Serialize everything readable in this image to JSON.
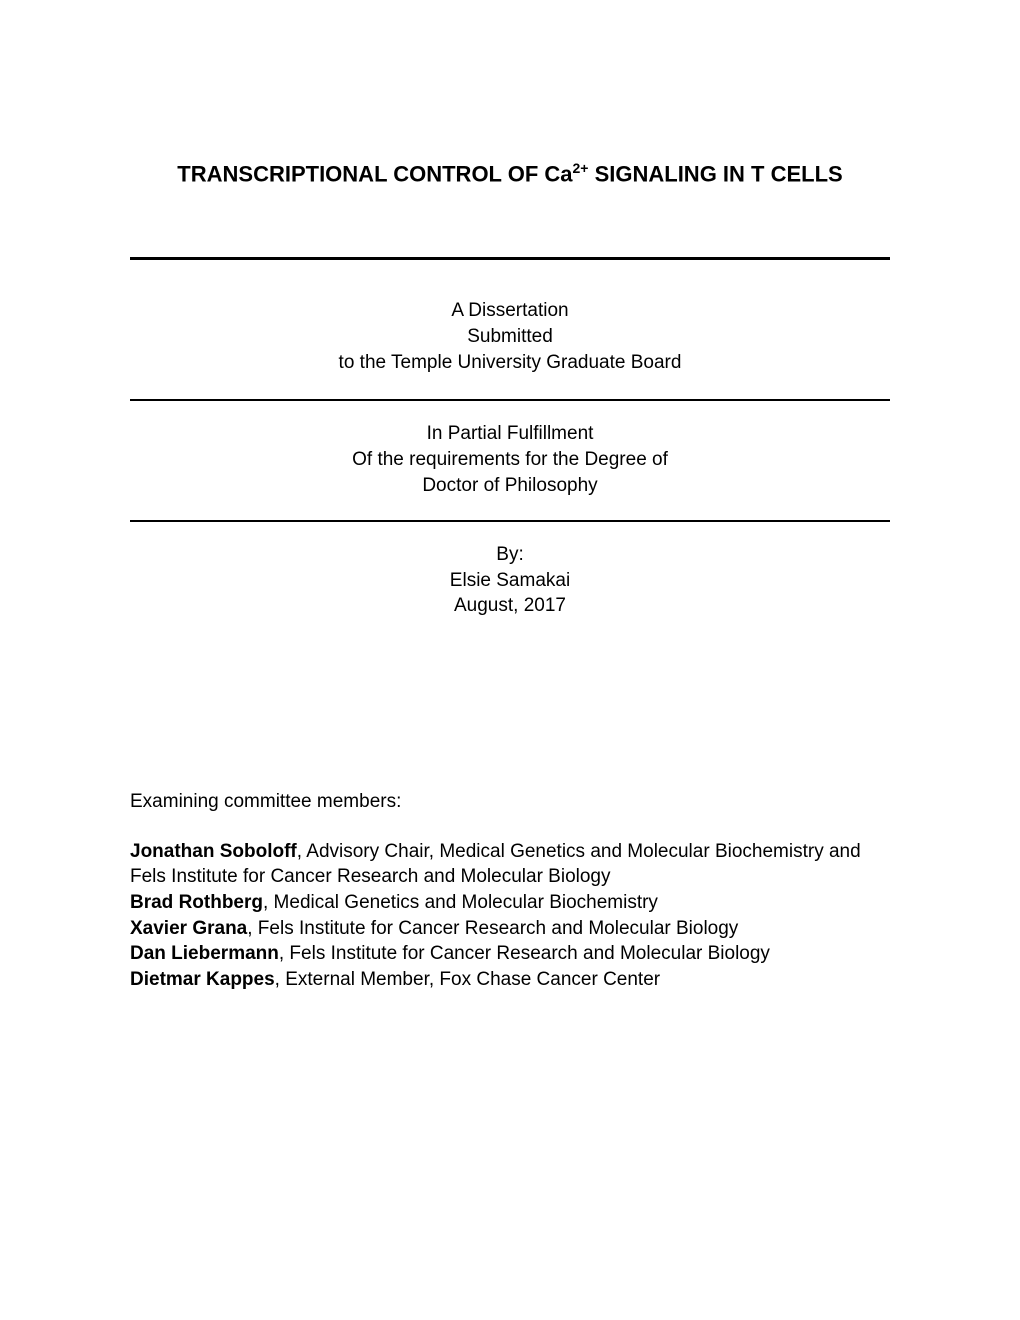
{
  "title": {
    "prefix": "TRANSCRIPTIONAL CONTROL OF Ca",
    "superscript": "2+",
    "suffix": " SIGNALING IN T CELLS",
    "fontsize": 22,
    "fontweight": "bold"
  },
  "submission": {
    "line1": "A Dissertation",
    "line2": "Submitted",
    "line3": "to the Temple University Graduate Board"
  },
  "fulfillment": {
    "line1": "In Partial Fulfillment",
    "line2": "Of the requirements for the Degree of",
    "line3": "Doctor of Philosophy"
  },
  "author": {
    "by_label": "By:",
    "name": "Elsie Samakai",
    "date": "August, 2017"
  },
  "committee": {
    "header": "Examining committee members:",
    "members": [
      {
        "name": "Jonathan Soboloff",
        "role": ", Advisory Chair, Medical Genetics and Molecular Biochemistry and Fels Institute for Cancer Research and Molecular Biology"
      },
      {
        "name": "Brad Rothberg",
        "role": ", Medical Genetics and Molecular Biochemistry"
      },
      {
        "name": "Xavier Grana",
        "role": ", Fels Institute for Cancer Research and Molecular Biology"
      },
      {
        "name": "Dan Liebermann",
        "role": ", Fels Institute for Cancer Research and Molecular Biology"
      },
      {
        "name": "Dietmar Kappes",
        "role": ", External Member, Fox Chase Cancer Center"
      }
    ]
  },
  "styles": {
    "background_color": "#ffffff",
    "text_color": "#000000",
    "body_fontsize": 19,
    "rule_thick_width": 3,
    "rule_thin_width": 2
  }
}
